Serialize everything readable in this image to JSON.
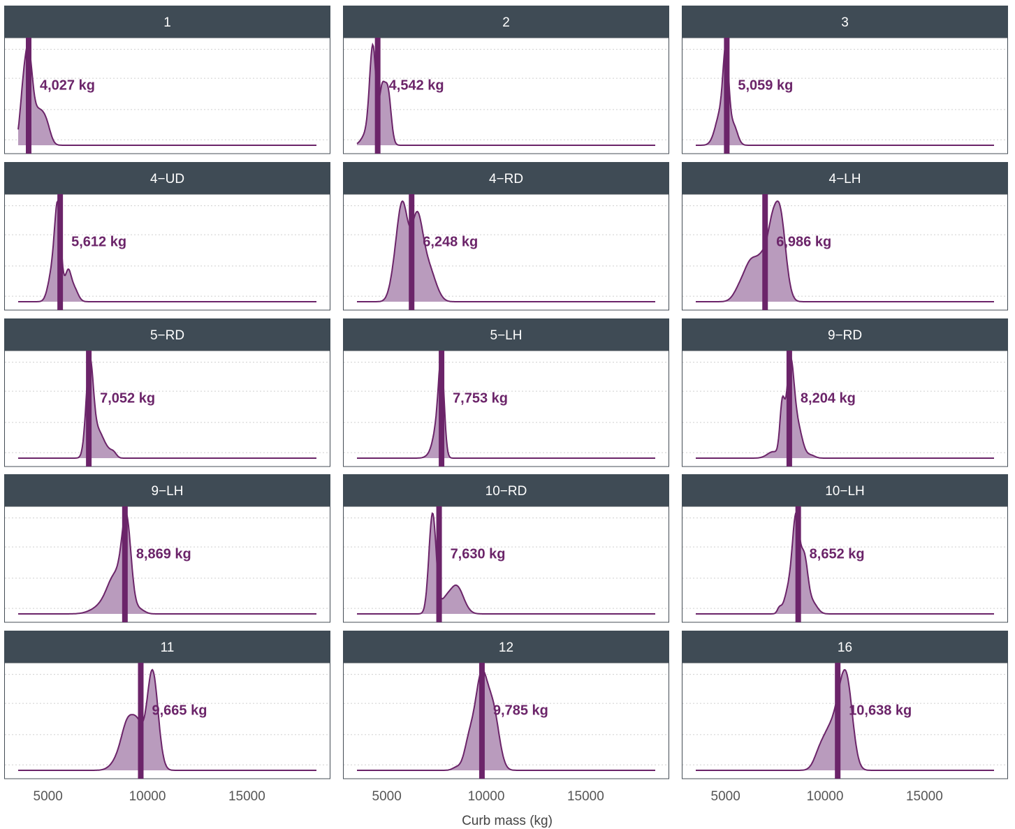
{
  "chart_data": {
    "type": "area",
    "xlabel": "Curb mass (kg)",
    "xlim": [
      3500,
      18500
    ],
    "x_ticks": [
      5000,
      10000,
      15000
    ],
    "grid": "horizontal dotted",
    "colors": {
      "fill": "#b99bbd",
      "line": "#6b2469",
      "mean": "#6b2469",
      "strip": "#3f4b55",
      "label": "#6b2469"
    },
    "panels": [
      {
        "title": "1",
        "mean": 4027,
        "label": "4,027 kg",
        "peaks": [
          [
            3700,
            0.3,
            150
          ],
          [
            4000,
            0.95,
            200
          ],
          [
            4550,
            0.35,
            300
          ],
          [
            4950,
            0.12,
            200
          ]
        ]
      },
      {
        "title": "2",
        "mean": 4542,
        "label": "4,542 kg",
        "peaks": [
          [
            4300,
            0.95,
            160
          ],
          [
            4750,
            0.5,
            140
          ],
          [
            5050,
            0.55,
            160
          ],
          [
            4000,
            0.12,
            250
          ]
        ]
      },
      {
        "title": "3",
        "mean": 5059,
        "label": "5,059 kg",
        "peaks": [
          [
            5020,
            1.0,
            140
          ],
          [
            4800,
            0.35,
            250
          ],
          [
            5400,
            0.25,
            200
          ],
          [
            4600,
            0.1,
            250
          ]
        ]
      },
      {
        "title": "4−UD",
        "mean": 5612,
        "label": "5,612 kg",
        "peaks": [
          [
            5500,
            1.0,
            160
          ],
          [
            5200,
            0.3,
            200
          ],
          [
            6000,
            0.3,
            150
          ],
          [
            6300,
            0.15,
            200
          ]
        ]
      },
      {
        "title": "4−RD",
        "mean": 6248,
        "label": "6,248 kg",
        "peaks": [
          [
            5800,
            0.85,
            270
          ],
          [
            6500,
            0.7,
            280
          ],
          [
            7000,
            0.3,
            350
          ],
          [
            5400,
            0.2,
            250
          ],
          [
            7400,
            0.06,
            300
          ]
        ]
      },
      {
        "title": "4−LH",
        "mean": 6986,
        "label": "6,986 kg",
        "peaks": [
          [
            7700,
            0.85,
            300
          ],
          [
            6300,
            0.35,
            350
          ],
          [
            6950,
            0.35,
            300
          ],
          [
            7300,
            0.25,
            200
          ],
          [
            5700,
            0.1,
            300
          ]
        ]
      },
      {
        "title": "5−RD",
        "mean": 7052,
        "label": "7,052 kg",
        "peaks": [
          [
            7100,
            0.95,
            180
          ],
          [
            7550,
            0.25,
            250
          ],
          [
            8000,
            0.06,
            200
          ],
          [
            8300,
            0.05,
            150
          ]
        ]
      },
      {
        "title": "5−LH",
        "mean": 7753,
        "label": "7,753 kg",
        "peaks": [
          [
            7750,
            1.0,
            140
          ],
          [
            7550,
            0.35,
            200
          ],
          [
            7300,
            0.06,
            250
          ]
        ]
      },
      {
        "title": "9−RD",
        "mean": 8204,
        "label": "8,204 kg",
        "peaks": [
          [
            8250,
            0.95,
            180
          ],
          [
            7850,
            0.55,
            120
          ],
          [
            8600,
            0.35,
            250
          ],
          [
            7400,
            0.07,
            300
          ],
          [
            9300,
            0.03,
            200
          ]
        ]
      },
      {
        "title": "9−LH",
        "mean": 8869,
        "label": "8,869 kg",
        "peaks": [
          [
            8950,
            0.95,
            230
          ],
          [
            8400,
            0.4,
            400
          ],
          [
            7700,
            0.08,
            500
          ],
          [
            9600,
            0.05,
            250
          ]
        ]
      },
      {
        "title": "10−RD",
        "mean": 7630,
        "label": "7,630 kg",
        "peaks": [
          [
            7300,
            1.0,
            180
          ],
          [
            8500,
            0.28,
            350
          ],
          [
            7900,
            0.1,
            250
          ]
        ]
      },
      {
        "title": "10−LH",
        "mean": 8652,
        "label": "8,652 kg",
        "peaks": [
          [
            8550,
            0.85,
            170
          ],
          [
            8950,
            0.55,
            180
          ],
          [
            8250,
            0.3,
            250
          ],
          [
            9350,
            0.12,
            250
          ],
          [
            7700,
            0.05,
            100
          ]
        ]
      },
      {
        "title": "11",
        "mean": 9665,
        "label": "9,665 kg",
        "peaks": [
          [
            10250,
            0.95,
            280
          ],
          [
            9050,
            0.45,
            330
          ],
          [
            9550,
            0.3,
            250
          ],
          [
            8500,
            0.08,
            350
          ]
        ]
      },
      {
        "title": "12",
        "mean": 9785,
        "label": "9,785 kg",
        "peaks": [
          [
            9750,
            0.95,
            300
          ],
          [
            10350,
            0.6,
            300
          ],
          [
            9150,
            0.3,
            250
          ],
          [
            8500,
            0.03,
            200
          ]
        ]
      },
      {
        "title": "16",
        "mean": 10638,
        "label": "10,638 kg",
        "peaks": [
          [
            11100,
            0.8,
            300
          ],
          [
            10650,
            0.45,
            300
          ],
          [
            9800,
            0.22,
            300
          ],
          [
            10200,
            0.2,
            250
          ]
        ]
      }
    ]
  }
}
